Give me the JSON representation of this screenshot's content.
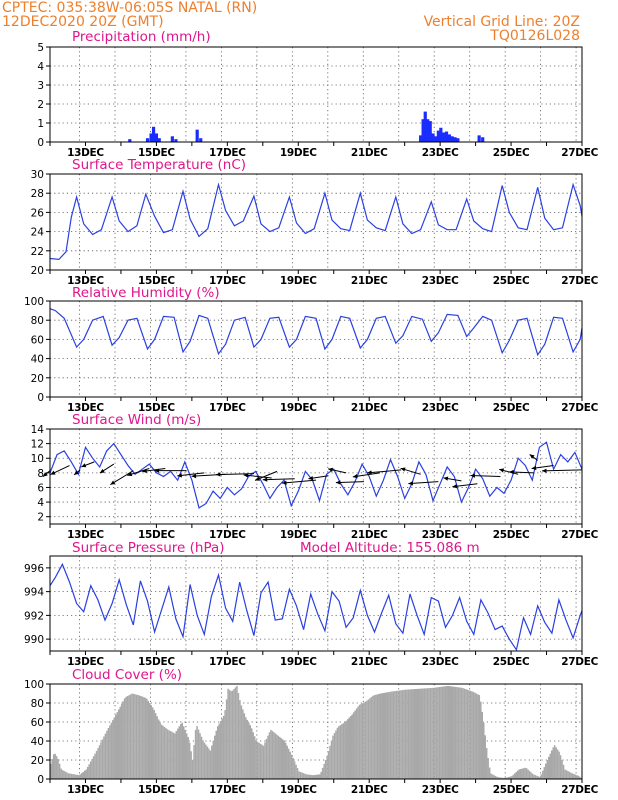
{
  "header": {
    "line1": "CPTEC:   035:38W-06:05S   NATAL (RN)",
    "line2": "12DEC2020 20Z (GMT)",
    "right1": "Vertical Grid Line: 20Z",
    "right2": "TQ0126L028"
  },
  "colors": {
    "header": "#ee7f2d",
    "title": "#e0168c",
    "line": "#2a40e0",
    "precip_bar": "#1a2cff",
    "cloud_bar": "#a8a8a8",
    "wind_vector": "#000000"
  },
  "x_axis": {
    "unit": "day_of_december",
    "range": [
      12,
      27
    ],
    "tick_days": [
      13,
      15,
      17,
      19,
      21,
      23,
      25,
      27
    ],
    "tick_labels": [
      "13DEC",
      "15DEC",
      "17DEC",
      "19DEC",
      "21DEC",
      "23DEC",
      "25DEC",
      "27DEC"
    ],
    "vertical_grid_days": [
      12.833,
      13.833,
      14.833,
      15.833,
      16.833,
      17.833,
      18.833,
      19.833,
      20.833,
      21.833,
      22.833,
      23.833,
      24.833,
      25.833,
      26.833
    ]
  },
  "chart_data": [
    {
      "id": "precip",
      "type": "bar",
      "title": "Precipitation (mm/h)",
      "ylim": [
        0,
        5
      ],
      "yticks": [
        0,
        1,
        2,
        3,
        4,
        5
      ],
      "grid": true,
      "bars": [
        {
          "x": 14.25,
          "v": 0.15
        },
        {
          "x": 14.75,
          "v": 0.2
        },
        {
          "x": 14.85,
          "v": 0.45
        },
        {
          "x": 14.92,
          "v": 0.8
        },
        {
          "x": 15.0,
          "v": 0.45
        },
        {
          "x": 15.08,
          "v": 0.2
        },
        {
          "x": 15.45,
          "v": 0.3
        },
        {
          "x": 15.55,
          "v": 0.15
        },
        {
          "x": 16.15,
          "v": 0.65
        },
        {
          "x": 16.25,
          "v": 0.2
        },
        {
          "x": 22.45,
          "v": 0.35
        },
        {
          "x": 22.52,
          "v": 1.2
        },
        {
          "x": 22.58,
          "v": 1.6
        },
        {
          "x": 22.65,
          "v": 1.2
        },
        {
          "x": 22.72,
          "v": 1.1
        },
        {
          "x": 22.8,
          "v": 0.45
        },
        {
          "x": 22.88,
          "v": 0.3
        },
        {
          "x": 22.95,
          "v": 0.6
        },
        {
          "x": 23.02,
          "v": 0.75
        },
        {
          "x": 23.1,
          "v": 0.5
        },
        {
          "x": 23.18,
          "v": 0.55
        },
        {
          "x": 23.26,
          "v": 0.4
        },
        {
          "x": 23.34,
          "v": 0.3
        },
        {
          "x": 23.42,
          "v": 0.25
        },
        {
          "x": 23.5,
          "v": 0.2
        },
        {
          "x": 24.1,
          "v": 0.35
        },
        {
          "x": 24.2,
          "v": 0.25
        }
      ]
    },
    {
      "id": "temp",
      "type": "line",
      "title": "Surface Temperature (nC)",
      "ylim": [
        20,
        30
      ],
      "yticks": [
        20,
        22,
        24,
        26,
        28,
        30
      ],
      "grid": true,
      "x": [
        12.0,
        12.25,
        12.45,
        12.6,
        12.75,
        12.95,
        13.2,
        13.45,
        13.75,
        13.95,
        14.2,
        14.45,
        14.7,
        14.95,
        15.2,
        15.45,
        15.75,
        15.95,
        16.2,
        16.45,
        16.75,
        16.95,
        17.2,
        17.45,
        17.75,
        17.95,
        18.2,
        18.45,
        18.75,
        18.95,
        19.2,
        19.45,
        19.75,
        19.95,
        20.2,
        20.45,
        20.75,
        20.95,
        21.2,
        21.45,
        21.75,
        21.95,
        22.2,
        22.45,
        22.75,
        22.95,
        23.2,
        23.45,
        23.75,
        23.95,
        24.2,
        24.45,
        24.75,
        24.95,
        25.2,
        25.45,
        25.75,
        25.95,
        26.2,
        26.45,
        26.75,
        26.95,
        27.0
      ],
      "values": [
        21.2,
        21.1,
        21.9,
        25.5,
        27.6,
        24.8,
        23.7,
        24.2,
        27.6,
        25.1,
        24.0,
        24.6,
        27.9,
        25.6,
        23.9,
        24.2,
        28.2,
        25.3,
        23.5,
        24.3,
        28.9,
        26.2,
        24.6,
        25.1,
        27.7,
        24.8,
        24.0,
        24.4,
        27.6,
        24.9,
        23.8,
        24.3,
        28.0,
        25.2,
        24.3,
        24.1,
        28.0,
        25.2,
        24.4,
        24.1,
        27.6,
        24.8,
        23.8,
        24.2,
        27.1,
        24.7,
        24.2,
        24.2,
        27.4,
        25.1,
        24.3,
        24.0,
        28.8,
        26.0,
        24.4,
        24.2,
        28.6,
        25.4,
        24.2,
        24.4,
        28.9,
        26.7,
        25.6
      ]
    },
    {
      "id": "rh",
      "type": "line",
      "title": "Relative Humidity (%)",
      "ylim": [
        0,
        100
      ],
      "yticks": [
        0,
        20,
        40,
        60,
        80,
        100
      ],
      "grid": true,
      "x": [
        12.0,
        12.15,
        12.4,
        12.75,
        12.95,
        13.2,
        13.5,
        13.75,
        13.95,
        14.2,
        14.45,
        14.75,
        14.95,
        15.2,
        15.5,
        15.75,
        15.95,
        16.2,
        16.45,
        16.75,
        16.95,
        17.2,
        17.5,
        17.75,
        17.95,
        18.2,
        18.45,
        18.75,
        18.95,
        19.2,
        19.5,
        19.75,
        19.95,
        20.2,
        20.45,
        20.75,
        20.95,
        21.2,
        21.45,
        21.75,
        21.95,
        22.2,
        22.5,
        22.75,
        22.95,
        23.2,
        23.5,
        23.75,
        23.95,
        24.2,
        24.45,
        24.75,
        24.95,
        25.2,
        25.45,
        25.75,
        25.95,
        26.2,
        26.45,
        26.75,
        26.95,
        27.0
      ],
      "values": [
        92,
        90,
        82,
        52,
        60,
        80,
        84,
        54,
        62,
        80,
        82,
        50,
        60,
        84,
        83,
        47,
        58,
        85,
        82,
        45,
        55,
        80,
        83,
        52,
        60,
        82,
        83,
        52,
        60,
        84,
        82,
        50,
        60,
        84,
        82,
        51,
        60,
        82,
        84,
        56,
        64,
        84,
        81,
        58,
        67,
        86,
        85,
        63,
        72,
        84,
        80,
        46,
        59,
        80,
        82,
        44,
        55,
        83,
        82,
        47,
        60,
        72
      ]
    },
    {
      "id": "wind",
      "type": "line",
      "title": "Surface Wind (m/s)",
      "ylim": [
        1,
        14
      ],
      "yticks": [
        2,
        4,
        6,
        8,
        10,
        12,
        14
      ],
      "grid": true,
      "x": [
        12.0,
        12.2,
        12.4,
        12.6,
        12.8,
        13.0,
        13.2,
        13.4,
        13.6,
        13.8,
        14.0,
        14.2,
        14.4,
        14.6,
        14.8,
        15.0,
        15.2,
        15.4,
        15.6,
        15.8,
        16.0,
        16.2,
        16.4,
        16.6,
        16.8,
        17.0,
        17.2,
        17.4,
        17.6,
        17.8,
        18.0,
        18.2,
        18.4,
        18.6,
        18.8,
        19.0,
        19.2,
        19.4,
        19.6,
        19.8,
        20.0,
        20.2,
        20.4,
        20.6,
        20.8,
        21.0,
        21.2,
        21.4,
        21.6,
        21.8,
        22.0,
        22.2,
        22.4,
        22.6,
        22.8,
        23.0,
        23.2,
        23.4,
        23.6,
        23.8,
        24.0,
        24.2,
        24.4,
        24.6,
        24.8,
        25.0,
        25.2,
        25.4,
        25.6,
        25.8,
        26.0,
        26.2,
        26.4,
        26.6,
        26.8,
        27.0
      ],
      "values": [
        8.0,
        10.5,
        11.0,
        9.5,
        7.8,
        11.5,
        10.0,
        8.8,
        11.0,
        12.0,
        10.5,
        9.0,
        7.8,
        8.5,
        9.2,
        8.0,
        7.5,
        8.2,
        7.0,
        9.5,
        7.0,
        3.2,
        3.8,
        5.5,
        4.5,
        6.0,
        5.0,
        5.8,
        7.5,
        8.2,
        6.5,
        4.5,
        6.0,
        7.0,
        3.5,
        5.5,
        8.2,
        7.0,
        4.2,
        7.8,
        8.5,
        6.5,
        5.0,
        6.8,
        9.2,
        7.5,
        4.8,
        7.0,
        9.8,
        7.5,
        4.5,
        6.5,
        9.5,
        7.8,
        4.2,
        6.5,
        8.8,
        7.5,
        4.0,
        6.0,
        8.5,
        7.2,
        4.8,
        6.0,
        5.2,
        7.0,
        10.0,
        9.0,
        7.0,
        11.5,
        12.2,
        8.5,
        10.5,
        9.5,
        10.8,
        8.5
      ],
      "vectors": [
        {
          "x": 12.0,
          "y": 8.3,
          "dx": -7,
          "dy": 6
        },
        {
          "x": 12.55,
          "y": 9.0,
          "dx": -19,
          "dy": 9
        },
        {
          "x": 12.85,
          "y": 8.4,
          "dx": -6,
          "dy": 5
        },
        {
          "x": 13.25,
          "y": 9.5,
          "dx": -13,
          "dy": 5
        },
        {
          "x": 13.8,
          "y": 9.2,
          "dx": -14,
          "dy": 9
        },
        {
          "x": 14.35,
          "y": 8.3,
          "dx": -23,
          "dy": 14
        },
        {
          "x": 14.8,
          "y": 8.6,
          "dx": -22,
          "dy": 7
        },
        {
          "x": 15.25,
          "y": 8.6,
          "dx": -23,
          "dy": 3
        },
        {
          "x": 15.85,
          "y": 8.3,
          "dx": -32,
          "dy": 0
        },
        {
          "x": 16.35,
          "y": 8.0,
          "dx": -27,
          "dy": 3
        },
        {
          "x": 16.95,
          "y": 7.8,
          "dx": -34,
          "dy": 2
        },
        {
          "x": 17.75,
          "y": 7.9,
          "dx": -38,
          "dy": 1
        },
        {
          "x": 18.25,
          "y": 7.3,
          "dx": -28,
          "dy": -3
        },
        {
          "x": 18.4,
          "y": 8.2,
          "dx": -22,
          "dy": 9
        },
        {
          "x": 18.9,
          "y": 7.2,
          "dx": -32,
          "dy": 1
        },
        {
          "x": 19.5,
          "y": 7.0,
          "dx": -34,
          "dy": 3
        },
        {
          "x": 19.85,
          "y": 7.6,
          "dx": -20,
          "dy": 3
        },
        {
          "x": 20.35,
          "y": 8.0,
          "dx": -18,
          "dy": -4
        },
        {
          "x": 20.85,
          "y": 6.8,
          "dx": -28,
          "dy": 1
        },
        {
          "x": 21.3,
          "y": 8.0,
          "dx": -27,
          "dy": 4
        },
        {
          "x": 21.9,
          "y": 8.4,
          "dx": -34,
          "dy": 3
        },
        {
          "x": 22.45,
          "y": 7.8,
          "dx": -20,
          "dy": -6
        },
        {
          "x": 22.95,
          "y": 6.8,
          "dx": -30,
          "dy": 2
        },
        {
          "x": 23.6,
          "y": 6.9,
          "dx": -18,
          "dy": -3
        },
        {
          "x": 24.05,
          "y": 6.5,
          "dx": -25,
          "dy": 3
        },
        {
          "x": 24.7,
          "y": 7.5,
          "dx": -30,
          "dy": -1
        },
        {
          "x": 25.2,
          "y": 7.8,
          "dx": -19,
          "dy": -5
        },
        {
          "x": 25.65,
          "y": 8.0,
          "dx": -25,
          "dy": -1
        },
        {
          "x": 25.75,
          "y": 9.7,
          "dx": -8,
          "dy": -6
        },
        {
          "x": 26.2,
          "y": 9.0,
          "dx": -22,
          "dy": 3
        },
        {
          "x": 27.0,
          "y": 8.4,
          "dx": -40,
          "dy": 1
        }
      ]
    },
    {
      "id": "pressure",
      "type": "line",
      "title": "Surface Pressure (hPa)",
      "ylim": [
        989,
        997
      ],
      "yticks": [
        990,
        992,
        994,
        996
      ],
      "grid": true,
      "x": [
        12.0,
        12.15,
        12.35,
        12.55,
        12.75,
        12.95,
        13.15,
        13.35,
        13.55,
        13.75,
        13.95,
        14.15,
        14.35,
        14.55,
        14.75,
        14.95,
        15.15,
        15.35,
        15.55,
        15.75,
        15.95,
        16.15,
        16.35,
        16.55,
        16.75,
        16.95,
        17.15,
        17.35,
        17.55,
        17.75,
        17.95,
        18.15,
        18.35,
        18.55,
        18.75,
        18.95,
        19.15,
        19.35,
        19.55,
        19.75,
        19.95,
        20.15,
        20.35,
        20.55,
        20.75,
        20.95,
        21.15,
        21.35,
        21.55,
        21.75,
        21.95,
        22.15,
        22.35,
        22.55,
        22.75,
        22.95,
        23.15,
        23.35,
        23.55,
        23.75,
        23.95,
        24.15,
        24.35,
        24.55,
        24.75,
        24.95,
        25.15,
        25.35,
        25.55,
        25.75,
        25.95,
        26.15,
        26.35,
        26.55,
        26.75,
        26.95,
        27.0
      ],
      "values": [
        994.5,
        995.2,
        996.3,
        994.8,
        993.0,
        992.3,
        994.5,
        993.3,
        991.6,
        993.0,
        995.0,
        992.9,
        991.2,
        994.9,
        993.2,
        990.6,
        992.5,
        994.4,
        991.7,
        990.2,
        994.6,
        992.0,
        990.4,
        993.6,
        995.4,
        992.6,
        991.5,
        994.8,
        992.4,
        990.3,
        993.9,
        994.8,
        991.6,
        991.7,
        994.2,
        992.8,
        990.8,
        993.8,
        992.1,
        990.7,
        994.0,
        993.2,
        991.0,
        991.8,
        994.1,
        992.0,
        990.6,
        992.2,
        993.7,
        991.3,
        990.5,
        993.8,
        992.0,
        990.4,
        993.5,
        993.2,
        991.0,
        992.0,
        993.5,
        991.5,
        990.4,
        993.3,
        992.2,
        990.8,
        991.1,
        990.0,
        989.1,
        991.8,
        990.4,
        992.8,
        991.4,
        990.5,
        993.3,
        991.6,
        990.1,
        992.0,
        992.4
      ]
    },
    {
      "id": "cloud",
      "type": "bar",
      "title": "Cloud Cover (%)",
      "ylim": [
        0,
        100
      ],
      "yticks": [
        0,
        20,
        40,
        60,
        80,
        100
      ],
      "grid": true,
      "profile": [
        [
          12.0,
          16
        ],
        [
          12.1,
          28
        ],
        [
          12.2,
          22
        ],
        [
          12.3,
          10
        ],
        [
          12.5,
          6
        ],
        [
          12.8,
          4
        ],
        [
          13.0,
          10
        ],
        [
          13.3,
          30
        ],
        [
          13.6,
          52
        ],
        [
          13.9,
          72
        ],
        [
          14.1,
          86
        ],
        [
          14.3,
          90
        ],
        [
          14.5,
          88
        ],
        [
          14.7,
          85
        ],
        [
          14.9,
          74
        ],
        [
          15.1,
          58
        ],
        [
          15.3,
          52
        ],
        [
          15.5,
          48
        ],
        [
          15.7,
          60
        ],
        [
          15.9,
          42
        ],
        [
          16.0,
          20
        ],
        [
          16.1,
          58
        ],
        [
          16.3,
          40
        ],
        [
          16.5,
          30
        ],
        [
          16.7,
          55
        ],
        [
          16.9,
          68
        ],
        [
          17.0,
          95
        ],
        [
          17.1,
          92
        ],
        [
          17.25,
          98
        ],
        [
          17.35,
          80
        ],
        [
          17.5,
          65
        ],
        [
          17.65,
          55
        ],
        [
          17.8,
          40
        ],
        [
          18.0,
          35
        ],
        [
          18.2,
          52
        ],
        [
          18.4,
          46
        ],
        [
          18.6,
          40
        ],
        [
          18.8,
          25
        ],
        [
          19.0,
          8
        ],
        [
          19.2,
          5
        ],
        [
          19.4,
          4
        ],
        [
          19.6,
          5
        ],
        [
          19.8,
          25
        ],
        [
          19.95,
          45
        ],
        [
          20.1,
          55
        ],
        [
          20.3,
          60
        ],
        [
          20.5,
          68
        ],
        [
          20.7,
          78
        ],
        [
          20.9,
          82
        ],
        [
          21.1,
          88
        ],
        [
          21.3,
          90
        ],
        [
          21.6,
          92
        ],
        [
          22.0,
          94
        ],
        [
          22.4,
          95
        ],
        [
          22.8,
          96
        ],
        [
          23.2,
          98
        ],
        [
          23.6,
          96
        ],
        [
          23.9,
          92
        ],
        [
          24.1,
          88
        ],
        [
          24.2,
          62
        ],
        [
          24.3,
          30
        ],
        [
          24.4,
          6
        ],
        [
          24.6,
          2
        ],
        [
          24.8,
          1
        ],
        [
          25.0,
          3
        ],
        [
          25.2,
          10
        ],
        [
          25.4,
          12
        ],
        [
          25.6,
          5
        ],
        [
          25.8,
          2
        ],
        [
          26.0,
          20
        ],
        [
          26.2,
          36
        ],
        [
          26.35,
          28
        ],
        [
          26.5,
          10
        ],
        [
          26.7,
          6
        ],
        [
          26.9,
          3
        ],
        [
          27.0,
          0
        ]
      ]
    }
  ],
  "titles": {
    "precip": "Precipitation (mm/h)",
    "temp": "Surface Temperature (nC)",
    "rh": "Relative Humidity (%)",
    "wind": "Surface Wind (m/s)",
    "pressure": "Surface Pressure (hPa)",
    "model_altitude": "Model Altitude: 155.086 m",
    "cloud": "Cloud Cover (%)"
  }
}
